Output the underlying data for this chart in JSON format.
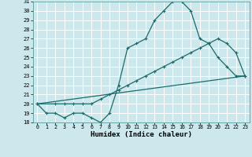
{
  "xlabel": "Humidex (Indice chaleur)",
  "bg_color": "#cce8ec",
  "grid_color": "#ffffff",
  "line_color": "#1a6b6b",
  "x_ticks": [
    0,
    1,
    2,
    3,
    4,
    5,
    6,
    7,
    8,
    9,
    10,
    11,
    12,
    13,
    14,
    15,
    16,
    17,
    18,
    19,
    20,
    21,
    22,
    23
  ],
  "ylim": [
    18,
    31
  ],
  "xlim": [
    -0.5,
    23.5
  ],
  "line1_x": [
    0,
    1,
    2,
    3,
    4,
    5,
    6,
    7,
    8,
    9,
    10,
    11,
    12,
    13,
    14,
    15,
    16,
    17,
    18,
    19,
    20,
    21,
    22,
    23
  ],
  "line1_y": [
    20,
    19,
    19,
    18.5,
    19,
    19,
    18.5,
    18,
    19,
    22,
    26,
    26.5,
    27,
    29,
    30,
    31,
    31,
    30,
    27,
    26.5,
    25,
    24,
    23,
    23
  ],
  "line2_x": [
    0,
    2,
    3,
    4,
    5,
    6,
    7,
    8,
    9,
    10,
    11,
    12,
    13,
    14,
    15,
    16,
    17,
    18,
    19,
    20,
    21,
    22,
    23
  ],
  "line2_y": [
    20,
    20,
    20,
    20,
    20,
    20,
    20.5,
    21,
    21.5,
    22,
    22.5,
    23,
    23.5,
    24,
    24.5,
    25,
    25.5,
    26,
    26.5,
    27,
    26.5,
    25.5,
    23
  ],
  "line3_x": [
    0,
    23
  ],
  "line3_y": [
    20,
    23
  ],
  "yticks": [
    18,
    19,
    20,
    21,
    22,
    23,
    24,
    25,
    26,
    27,
    28,
    29,
    30,
    31
  ]
}
